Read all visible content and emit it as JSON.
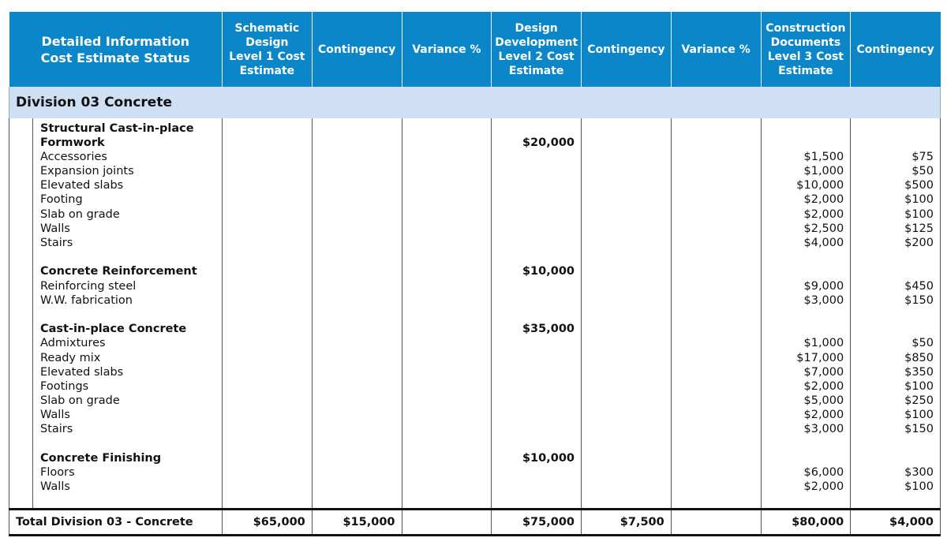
{
  "header": {
    "col0": [
      "Detailed Information",
      "Cost Estimate Status"
    ],
    "col1": [
      "Schematic",
      "Design",
      "Level 1 Cost",
      "Estimate"
    ],
    "col2": [
      "Contingency"
    ],
    "col3": [
      "Variance %"
    ],
    "col4": [
      "Design",
      "Development",
      "Level 2 Cost",
      "Estimate"
    ],
    "col5": [
      "Contingency"
    ],
    "col6": [
      "Variance %"
    ],
    "col7": [
      "Construction",
      "Documents",
      "Level 3 Cost",
      "Estimate"
    ],
    "col8": [
      "Contingency"
    ]
  },
  "division": {
    "title": "Division 03 Concrete"
  },
  "groups": [
    {
      "title_lines": [
        "Structural Cast-in-place",
        "Formwork"
      ],
      "level2": "$20,000",
      "items": [
        {
          "name": "Accessories",
          "level3": "$1,500",
          "contingency3": "$75"
        },
        {
          "name": "Expansion joints",
          "level3": "$1,000",
          "contingency3": "$50"
        },
        {
          "name": "Elevated slabs",
          "level3": "$10,000",
          "contingency3": "$500"
        },
        {
          "name": "Footing",
          "level3": "$2,000",
          "contingency3": "$100"
        },
        {
          "name": "Slab on grade",
          "level3": "$2,000",
          "contingency3": "$100"
        },
        {
          "name": "Walls",
          "level3": "$2,500",
          "contingency3": "$125"
        },
        {
          "name": "Stairs",
          "level3": "$4,000",
          "contingency3": "$200"
        }
      ]
    },
    {
      "title_lines": [
        "Concrete Reinforcement"
      ],
      "level2": "$10,000",
      "items": [
        {
          "name": "Reinforcing steel",
          "level3": "$9,000",
          "contingency3": "$450"
        },
        {
          "name": "W.W. fabrication",
          "level3": "$3,000",
          "contingency3": "$150"
        }
      ]
    },
    {
      "title_lines": [
        "Cast-in-place Concrete"
      ],
      "level2": "$35,000",
      "items": [
        {
          "name": "Admixtures",
          "level3": "$1,000",
          "contingency3": "$50"
        },
        {
          "name": "Ready mix",
          "level3": "$17,000",
          "contingency3": "$850"
        },
        {
          "name": "Elevated slabs",
          "level3": "$7,000",
          "contingency3": "$350"
        },
        {
          "name": "Footings",
          "level3": "$2,000",
          "contingency3": "$100"
        },
        {
          "name": "Slab on grade",
          "level3": "$5,000",
          "contingency3": "$250"
        },
        {
          "name": "Walls",
          "level3": "$2,000",
          "contingency3": "$100"
        },
        {
          "name": "Stairs",
          "level3": "$3,000",
          "contingency3": "$150"
        }
      ]
    },
    {
      "title_lines": [
        "Concrete Finishing"
      ],
      "level2": "$10,000",
      "items": [
        {
          "name": "Floors",
          "level3": "$6,000",
          "contingency3": "$300"
        },
        {
          "name": "Walls",
          "level3": "$2,000",
          "contingency3": "$100"
        }
      ]
    }
  ],
  "total": {
    "label": "Total Division 03 - Concrete",
    "level1": "$65,000",
    "contingency1": "$15,000",
    "variance1": "",
    "level2": "$75,000",
    "contingency2": "$7,500",
    "variance2": "",
    "level3": "$80,000",
    "contingency3": "$4,000"
  },
  "colors": {
    "header_bg": "#0b86c8",
    "division_bg": "#cfe0f4"
  }
}
